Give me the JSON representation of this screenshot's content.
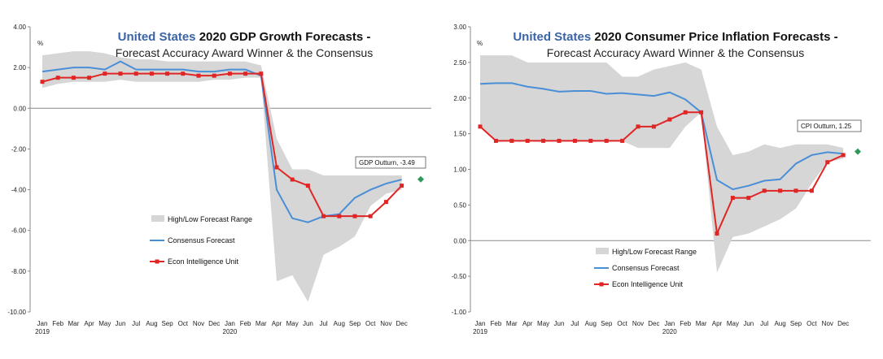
{
  "chart_data": [
    {
      "type": "line",
      "title_country": "United States",
      "title_rest": "2020 GDP Growth Forecasts -",
      "subtitle": "Forecast Accuracy Award Winner & the Consensus",
      "unit_label": "%",
      "ylim": [
        -10,
        4
      ],
      "yticks": [
        "4.00",
        "2.00",
        "0.00",
        "-2.00",
        "-4.00",
        "-6.00",
        "-8.00",
        "-10.00"
      ],
      "ytick_values": [
        4,
        2,
        0,
        -2,
        -4,
        -6,
        -8,
        -10
      ],
      "categories": [
        "Jan",
        "Feb",
        "Mar",
        "Apr",
        "May",
        "Jun",
        "Jul",
        "Aug",
        "Sep",
        "Oct",
        "Nov",
        "Dec",
        "Jan",
        "Feb",
        "Mar",
        "Apr",
        "May",
        "Jun",
        "Jul",
        "Aug",
        "Sep",
        "Oct",
        "Nov",
        "Dec"
      ],
      "year_labels": [
        {
          "label": "2019",
          "index": 0
        },
        {
          "label": "2020",
          "index": 12
        }
      ],
      "range_high": [
        2.6,
        2.7,
        2.8,
        2.8,
        2.7,
        2.5,
        2.4,
        2.4,
        2.3,
        2.3,
        2.3,
        2.3,
        2.3,
        2.3,
        2.1,
        -1.5,
        -3.0,
        -3.0,
        -3.3,
        -3.3,
        -3.3,
        -3.3,
        -3.3,
        -3.3
      ],
      "range_low": [
        1.0,
        1.2,
        1.3,
        1.3,
        1.3,
        1.4,
        1.3,
        1.3,
        1.3,
        1.3,
        1.3,
        1.4,
        1.4,
        1.5,
        1.5,
        -8.5,
        -8.2,
        -9.5,
        -7.2,
        -6.8,
        -6.3,
        -4.8,
        -4.2,
        -4.0
      ],
      "series": [
        {
          "name": "Consensus Forecast",
          "color": "#4a8fd6",
          "values": [
            1.8,
            1.9,
            2.0,
            2.0,
            1.9,
            2.3,
            1.9,
            1.9,
            1.9,
            1.9,
            1.8,
            1.8,
            1.9,
            1.9,
            1.6,
            -4.0,
            -5.4,
            -5.6,
            -5.3,
            -5.2,
            -4.4,
            -4.0,
            -3.7,
            -3.5
          ]
        },
        {
          "name": "Econ Intelligence Unit",
          "color": "#e02525",
          "values": [
            1.3,
            1.5,
            1.5,
            1.5,
            1.7,
            1.7,
            1.7,
            1.7,
            1.7,
            1.7,
            1.6,
            1.6,
            1.7,
            1.7,
            1.7,
            -2.9,
            -3.5,
            -3.8,
            -5.3,
            -5.3,
            -5.3,
            -5.3,
            -4.6,
            -3.8
          ]
        }
      ],
      "range_legend": "High/Low Forecast Range",
      "outturn": {
        "label": "GDP Outturn, -3.49",
        "value": -3.49,
        "color": "#2e9a5a"
      }
    },
    {
      "type": "line",
      "title_country": "United States",
      "title_rest": "2020 Consumer Price Inflation Forecasts -",
      "subtitle": "Forecast Accuracy Award Winner & the Consensus",
      "unit_label": "%",
      "ylim": [
        -1,
        3
      ],
      "yticks": [
        "3.00",
        "2.50",
        "2.00",
        "1.50",
        "1.00",
        "0.50",
        "0.00",
        "-0.50",
        "-1.00"
      ],
      "ytick_values": [
        3,
        2.5,
        2,
        1.5,
        1,
        0.5,
        0,
        -0.5,
        -1
      ],
      "categories": [
        "Jan",
        "Feb",
        "Mar",
        "Apr",
        "May",
        "Jun",
        "Jul",
        "Aug",
        "Sep",
        "Oct",
        "Nov",
        "Dec",
        "Jan",
        "Feb",
        "Mar",
        "Apr",
        "May",
        "Jun",
        "Jul",
        "Aug",
        "Sep",
        "Oct",
        "Nov",
        "Dec"
      ],
      "year_labels": [
        {
          "label": "2019",
          "index": 0
        },
        {
          "label": "2020",
          "index": 12
        }
      ],
      "range_high": [
        2.6,
        2.6,
        2.6,
        2.5,
        2.5,
        2.5,
        2.5,
        2.5,
        2.5,
        2.3,
        2.3,
        2.4,
        2.45,
        2.5,
        2.4,
        1.6,
        1.2,
        1.25,
        1.35,
        1.3,
        1.35,
        1.35,
        1.35,
        1.3
      ],
      "range_low": [
        1.6,
        1.4,
        1.4,
        1.4,
        1.4,
        1.4,
        1.4,
        1.4,
        1.4,
        1.4,
        1.3,
        1.3,
        1.3,
        1.6,
        1.8,
        -0.45,
        0.05,
        0.1,
        0.2,
        0.3,
        0.45,
        0.8,
        1.1,
        1.15
      ],
      "series": [
        {
          "name": "Consensus Forecast",
          "color": "#4a8fd6",
          "values": [
            2.2,
            2.21,
            2.21,
            2.16,
            2.13,
            2.09,
            2.1,
            2.1,
            2.06,
            2.07,
            2.05,
            2.03,
            2.08,
            1.98,
            1.8,
            0.85,
            0.72,
            0.77,
            0.84,
            0.86,
            1.08,
            1.2,
            1.24,
            1.22
          ]
        },
        {
          "name": "Econ Intelligence Unit",
          "color": "#e02525",
          "values": [
            1.6,
            1.4,
            1.4,
            1.4,
            1.4,
            1.4,
            1.4,
            1.4,
            1.4,
            1.4,
            1.6,
            1.6,
            1.7,
            1.8,
            1.8,
            0.1,
            0.6,
            0.6,
            0.7,
            0.7,
            0.7,
            0.7,
            1.1,
            1.2
          ]
        }
      ],
      "range_legend": "High/Low Forecast Range",
      "outturn": {
        "label": "CPI Outturn, 1.25",
        "value": 1.25,
        "color": "#2e9a5a"
      }
    }
  ]
}
